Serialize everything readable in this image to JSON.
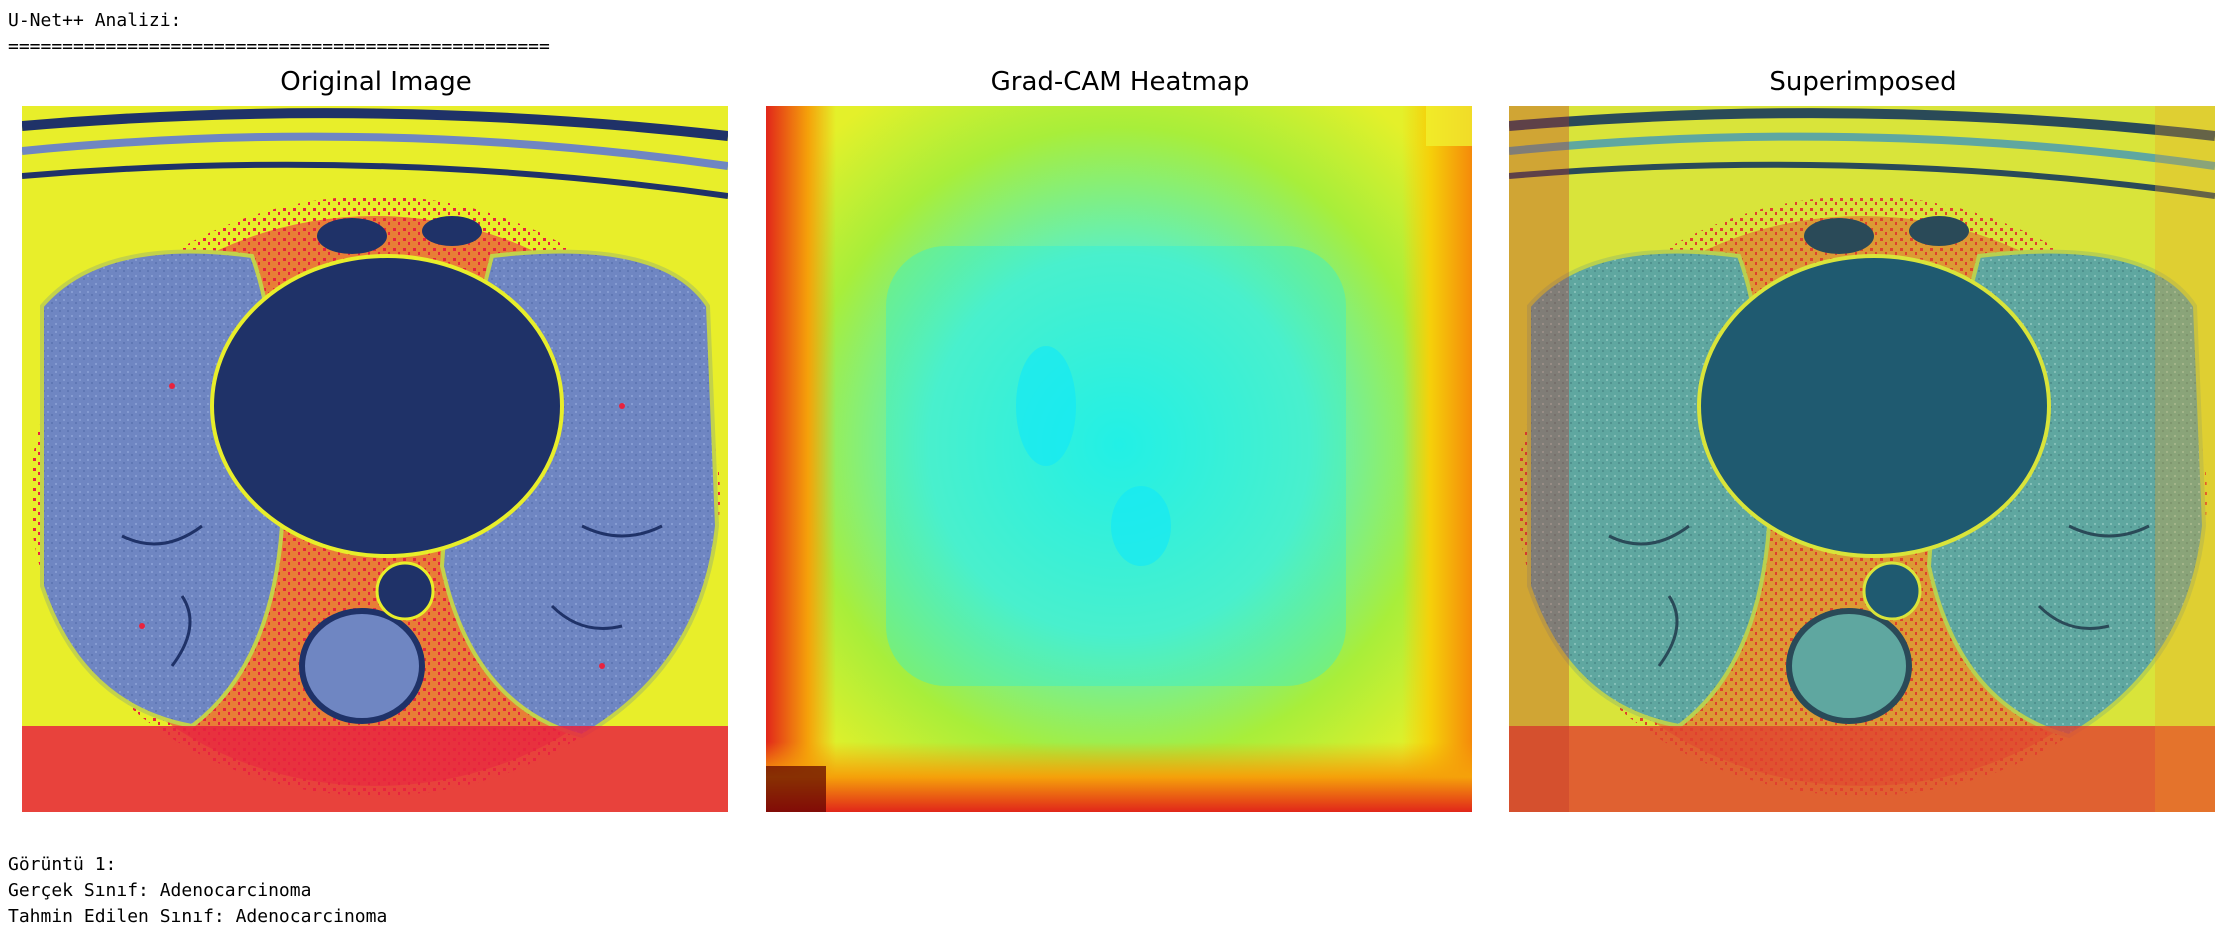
{
  "output": {
    "header_line": "U-Net++ Analizi:",
    "separator_line": "==================================================",
    "footer_lines": [
      "Görüntü 1:",
      "Gerçek Sınıf: Adenocarcinoma",
      "Tahmin Edilen Sınıf: Adenocarcinoma"
    ]
  },
  "figure": {
    "panels": [
      {
        "title": "Original Image"
      },
      {
        "title": "Grad-CAM Heatmap"
      },
      {
        "title": "Superimposed"
      }
    ]
  },
  "colors": {
    "scan_background": "#e8ee2a",
    "lung_tissue": "#6f86c2",
    "dark_structures": "#1f3268",
    "bright_edges": "#e8233f",
    "heatmap_low": "#22f0e6",
    "heatmap_mid": "#a8ee3a",
    "heatmap_high": "#e1261a",
    "heatmap_max": "#5a0000"
  }
}
